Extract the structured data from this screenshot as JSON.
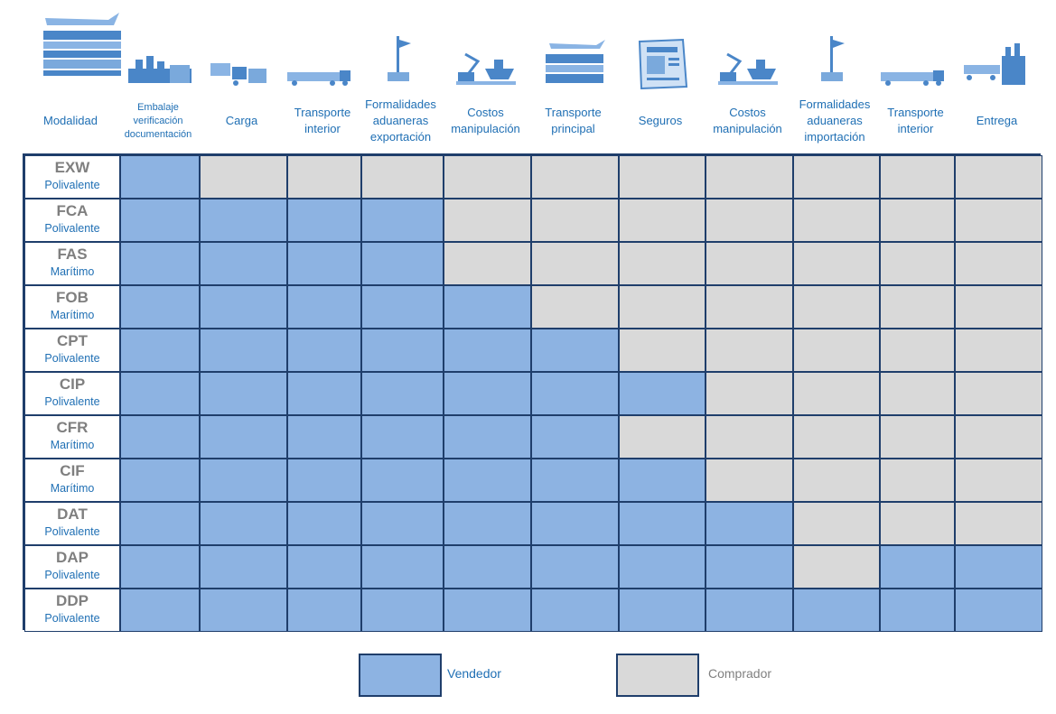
{
  "header": {
    "first_label": "Modalidad",
    "columns": [
      {
        "label": "Embalaje\nverificación\ndocumentación",
        "icon": "factory-icon",
        "small": true
      },
      {
        "label": "Carga",
        "icon": "forklift-loading-icon"
      },
      {
        "label": "Transporte\ninterior",
        "icon": "truck-icon"
      },
      {
        "label": "Formalidades\naduaneras\nexportación",
        "icon": "customs-flag-icon"
      },
      {
        "label": "Costos\nmanipulación",
        "icon": "crane-ship-icon"
      },
      {
        "label": "Transporte\nprincipal",
        "icon": "multimodal-transport-icon"
      },
      {
        "label": "Seguros",
        "icon": "insurance-document-icon"
      },
      {
        "label": "Costos\nmanipulación",
        "icon": "crane-ship-icon"
      },
      {
        "label": "Formalidades\naduaneras\nimportación",
        "icon": "customs-flag-icon"
      },
      {
        "label": "Transporte\ninterior",
        "icon": "truck-icon"
      },
      {
        "label": "Entrega",
        "icon": "warehouse-icon"
      }
    ]
  },
  "rows": [
    {
      "code": "EXW",
      "mode": "Polivalente",
      "seller_cells": [
        0
      ]
    },
    {
      "code": "FCA",
      "mode": "Polivalente",
      "seller_cells": [
        0,
        1,
        2,
        3
      ]
    },
    {
      "code": "FAS",
      "mode": "Marítimo",
      "seller_cells": [
        0,
        1,
        2,
        3
      ]
    },
    {
      "code": "FOB",
      "mode": "Marítimo",
      "seller_cells": [
        0,
        1,
        2,
        3,
        4
      ]
    },
    {
      "code": "CPT",
      "mode": "Polivalente",
      "seller_cells": [
        0,
        1,
        2,
        3,
        4,
        5
      ]
    },
    {
      "code": "CIP",
      "mode": "Polivalente",
      "seller_cells": [
        0,
        1,
        2,
        3,
        4,
        5,
        6
      ]
    },
    {
      "code": "CFR",
      "mode": "Marítimo",
      "seller_cells": [
        0,
        1,
        2,
        3,
        4,
        5
      ]
    },
    {
      "code": "CIF",
      "mode": "Marítimo",
      "seller_cells": [
        0,
        1,
        2,
        3,
        4,
        5,
        6
      ]
    },
    {
      "code": "DAT",
      "mode": "Polivalente",
      "seller_cells": [
        0,
        1,
        2,
        3,
        4,
        5,
        6,
        7
      ]
    },
    {
      "code": "DAP",
      "mode": "Polivalente",
      "seller_cells": [
        0,
        1,
        2,
        3,
        4,
        5,
        6,
        7,
        9,
        10
      ]
    },
    {
      "code": "DDP",
      "mode": "Polivalente",
      "seller_cells": [
        0,
        1,
        2,
        3,
        4,
        5,
        6,
        7,
        8,
        9,
        10
      ]
    }
  ],
  "legend": {
    "seller_label": "Vendedor",
    "buyer_label": "Comprador"
  },
  "colors": {
    "seller": "#8db3e2",
    "buyer": "#d9d9d9",
    "border": "#1f3e6b",
    "label_blue": "#1f6fb4",
    "code_gray": "#7f7f7f"
  }
}
